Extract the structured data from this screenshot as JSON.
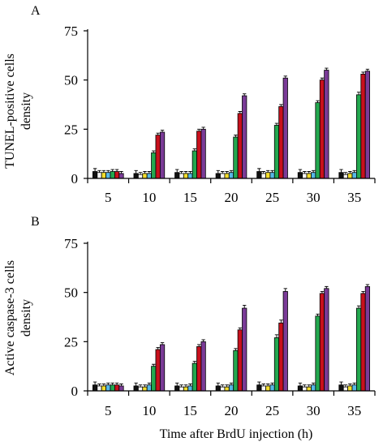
{
  "chart_data": [
    {
      "type": "bar",
      "panel_label": "A",
      "ylabel_lines": [
        "TUNEL-positive cells",
        "density"
      ],
      "xlabel": "",
      "categories": [
        "5",
        "10",
        "15",
        "20",
        "25",
        "30",
        "35"
      ],
      "ylim": [
        0,
        75
      ],
      "yticks": [
        "0",
        "25",
        "50",
        "75"
      ],
      "legend": "none",
      "grid": false,
      "series": [
        {
          "color": "#111111",
          "values": [
            3.5,
            2.5,
            3,
            2.5,
            3.5,
            3,
            3
          ],
          "errors": [
            1.5,
            1.5,
            1.5,
            1.5,
            1.5,
            1.5,
            1.5
          ]
        },
        {
          "color": "#f5f5f5",
          "values": [
            3,
            2,
            2.5,
            2.5,
            2.5,
            2.5,
            2
          ],
          "errors": [
            1,
            1,
            1,
            1,
            1,
            1,
            1
          ]
        },
        {
          "color": "#f2dd2e",
          "values": [
            3,
            2.5,
            2.5,
            2.5,
            3,
            2.5,
            2.5
          ],
          "errors": [
            1,
            1,
            1,
            1,
            1,
            1,
            1
          ]
        },
        {
          "color": "#57b8e6",
          "values": [
            3,
            2.5,
            2.5,
            3,
            3,
            3,
            3
          ],
          "errors": [
            1,
            1,
            1,
            1,
            1,
            1,
            1
          ]
        },
        {
          "color": "#23a84f",
          "values": [
            3.5,
            13,
            14,
            21,
            27,
            38.5,
            42.5
          ],
          "errors": [
            1,
            1,
            1,
            1,
            1,
            1,
            1.3
          ]
        },
        {
          "color": "#c8101c",
          "values": [
            3.5,
            22,
            24,
            33,
            36.5,
            50,
            53
          ],
          "errors": [
            1,
            1,
            1,
            1,
            1,
            1,
            1
          ]
        },
        {
          "color": "#7a3b97",
          "values": [
            2.5,
            23.5,
            25,
            42,
            51,
            55,
            54.5
          ],
          "errors": [
            1,
            1,
            1,
            1,
            1,
            1,
            1
          ]
        }
      ]
    },
    {
      "type": "bar",
      "panel_label": "B",
      "ylabel_lines": [
        "Active caspase-3 cells",
        "density"
      ],
      "xlabel": "Time after BrdU injection (h)",
      "categories": [
        "5",
        "10",
        "15",
        "20",
        "25",
        "30",
        "35"
      ],
      "ylim": [
        0,
        75
      ],
      "yticks": [
        "0",
        "25",
        "50",
        "75"
      ],
      "legend": "none",
      "grid": false,
      "series": [
        {
          "color": "#111111",
          "values": [
            3,
            2.5,
            2.5,
            2.5,
            3,
            2.5,
            3
          ],
          "errors": [
            1.5,
            1.5,
            1.5,
            1.5,
            1.5,
            1.5,
            1.5
          ]
        },
        {
          "color": "#f5f5f5",
          "values": [
            2.5,
            2,
            2,
            2,
            2.5,
            2,
            2
          ],
          "errors": [
            1,
            1,
            1,
            1,
            1,
            1,
            1
          ]
        },
        {
          "color": "#f2dd2e",
          "values": [
            2.5,
            2,
            2,
            2,
            2.5,
            2,
            2.5
          ],
          "errors": [
            1,
            1,
            1,
            1,
            1,
            1,
            1
          ]
        },
        {
          "color": "#57b8e6",
          "values": [
            3,
            3,
            2.5,
            3,
            3,
            3,
            3
          ],
          "errors": [
            1,
            1,
            1,
            1,
            1,
            1,
            1
          ]
        },
        {
          "color": "#23a84f",
          "values": [
            3,
            12.5,
            14,
            20.5,
            27,
            38,
            42
          ],
          "errors": [
            1,
            1,
            1,
            1,
            1.5,
            1,
            1.2
          ]
        },
        {
          "color": "#c8101c",
          "values": [
            3,
            21,
            22.5,
            31,
            34.5,
            49.5,
            49.5
          ],
          "errors": [
            1,
            1,
            1,
            1,
            1.5,
            1,
            1
          ]
        },
        {
          "color": "#7a3b97",
          "values": [
            2.5,
            23.5,
            25,
            42,
            50.5,
            52,
            53
          ],
          "errors": [
            1,
            1,
            1,
            1.5,
            1.5,
            1,
            1
          ]
        }
      ]
    }
  ]
}
